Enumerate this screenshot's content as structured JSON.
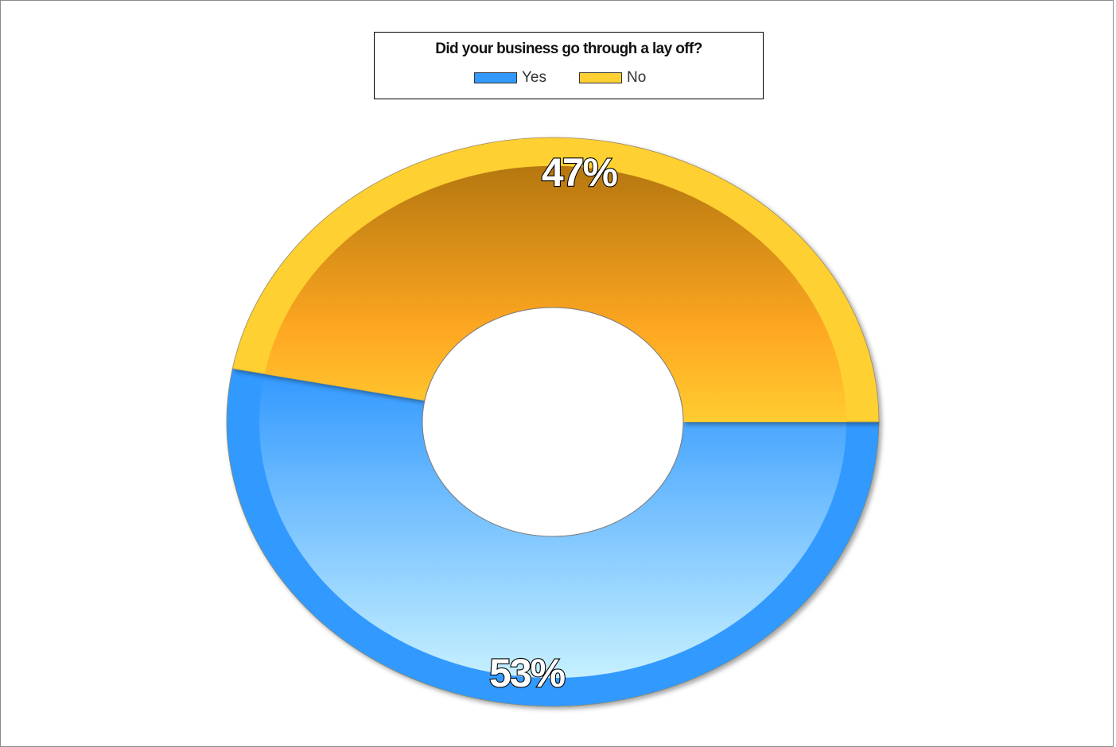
{
  "chart_data": {
    "type": "pie",
    "variant": "donut",
    "title": "Did your business go through a lay off?",
    "legend_position": "top-center",
    "categories": [
      "Yes",
      "No"
    ],
    "values": [
      53,
      47
    ],
    "value_labels": [
      "53%",
      "47%"
    ],
    "units": "%",
    "colors": {
      "Yes": "#3399ff",
      "No": "#ffd033"
    },
    "series": [
      {
        "name": "Yes",
        "value": 53,
        "label": "53%",
        "color": "#3399ff"
      },
      {
        "name": "No",
        "value": 47,
        "label": "47%",
        "color": "#ffd033"
      }
    ]
  }
}
